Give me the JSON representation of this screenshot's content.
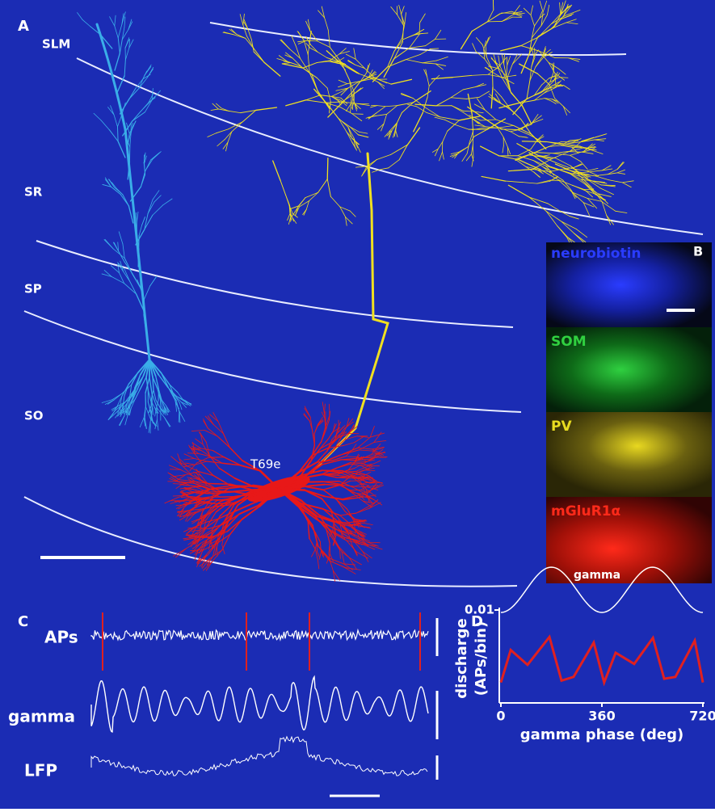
{
  "panel_a": {
    "label": "A",
    "layers": [
      "SLM",
      "SR",
      "SP",
      "SO"
    ],
    "cell_id": "T69e"
  },
  "panel_b": {
    "label": "B",
    "stains": [
      "neurobiotin",
      "SOM",
      "PV",
      "mGluR1α"
    ]
  },
  "panel_c": {
    "label": "C",
    "traces": [
      "APs",
      "gamma",
      "LFP"
    ]
  },
  "chart_data": {
    "type": "line",
    "panel_label": "D",
    "reference_label": "gamma",
    "ylabel": [
      "discharge",
      "(APs/bin)"
    ],
    "xlabel": "gamma phase (deg)",
    "x": [
      0,
      35,
      95,
      173,
      216,
      259,
      331,
      368,
      409,
      475,
      542,
      582,
      622,
      691,
      720
    ],
    "series": [
      {
        "color": "#e02020",
        "values": [
          0.0022,
          0.0057,
          0.0041,
          0.0071,
          0.0024,
          0.0028,
          0.0065,
          0.0022,
          0.0054,
          0.0042,
          0.007,
          0.0026,
          0.0028,
          0.0067,
          0.0022
        ]
      }
    ],
    "xlim": [
      0,
      720
    ],
    "ylim": [
      0,
      0.01
    ],
    "xticks": [
      0,
      360,
      720
    ],
    "yticks": [
      0.01
    ]
  }
}
